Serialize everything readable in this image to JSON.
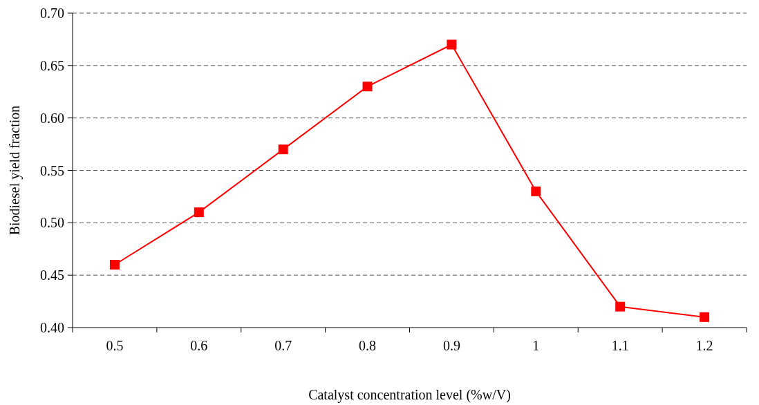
{
  "chart_data": {
    "type": "line",
    "xlabel": "Catalyst concentration level (%w/V)",
    "ylabel": "Biodiesel yield fraction",
    "categories": [
      "0.5",
      "0.6",
      "0.7",
      "0.8",
      "0.9",
      "1",
      "1.1",
      "1.2"
    ],
    "series": [
      {
        "color": "#ff0000",
        "values": [
          0.46,
          0.51,
          0.57,
          0.63,
          0.67,
          0.53,
          0.42,
          0.41
        ]
      }
    ],
    "ylim": [
      0.4,
      0.7
    ],
    "yticks": [
      {
        "value": 0.4,
        "label": "0.40"
      },
      {
        "value": 0.45,
        "label": "0.45"
      },
      {
        "value": 0.5,
        "label": "0.50"
      },
      {
        "value": 0.55,
        "label": "0.55"
      },
      {
        "value": 0.6,
        "label": "0.60"
      },
      {
        "value": 0.65,
        "label": "0.65"
      },
      {
        "value": 0.7,
        "label": "0.70"
      }
    ],
    "grid": "y",
    "marker": "square",
    "line_style": "solid"
  }
}
